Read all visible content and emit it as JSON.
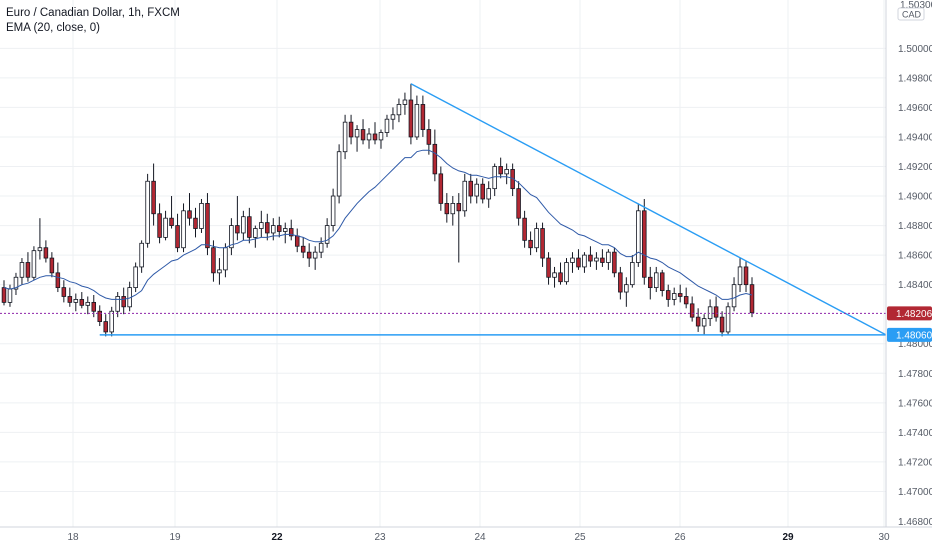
{
  "legend": {
    "title": "Euro / Canadian Dollar, 1h, FXCM",
    "indicator": "EMA (20, close, 0)"
  },
  "currency_badge": "CAD",
  "colors": {
    "up": "#ffffff",
    "down": "#b22833",
    "wick": "#131722",
    "ema": "#2f5aa8",
    "trendline": "#2a9df4",
    "price_line": "#8e24aa",
    "grid": "#eef0f3"
  },
  "chart_data": {
    "type": "candlestick",
    "symbol": "EURCAD",
    "ylim": [
      1.468,
      1.503
    ],
    "y_ticks": [
      "1.50000",
      "1.49800",
      "1.49600",
      "1.49400",
      "1.49200",
      "1.49000",
      "1.48800",
      "1.48600",
      "1.48400",
      "1.48000",
      "1.47800",
      "1.47600",
      "1.47400",
      "1.47200",
      "1.47000"
    ],
    "y_top_label": "1.50300",
    "y_bottom_label": "1.46800",
    "x_ticks": [
      {
        "label": "18",
        "bold": false
      },
      {
        "label": "19",
        "bold": false
      },
      {
        "label": "22",
        "bold": true
      },
      {
        "label": "23",
        "bold": false
      },
      {
        "label": "24",
        "bold": false
      },
      {
        "label": "25",
        "bold": false
      },
      {
        "label": "26",
        "bold": false
      },
      {
        "label": "29",
        "bold": true
      },
      {
        "label": "30",
        "bold": false
      }
    ],
    "current_price": "1.48206",
    "current_price_value": 1.48206,
    "support_label": "1.48060",
    "support_value": 1.4806,
    "trendline": {
      "from_value": 1.4976,
      "to_value": 1.4806
    },
    "candles": [
      [
        1.4838,
        1.4843,
        1.4826,
        1.4828
      ],
      [
        1.4828,
        1.484,
        1.4825,
        1.4837
      ],
      [
        1.4837,
        1.4848,
        1.4833,
        1.4845
      ],
      [
        1.4845,
        1.4858,
        1.484,
        1.4855
      ],
      [
        1.4855,
        1.4862,
        1.4842,
        1.4845
      ],
      [
        1.4845,
        1.4866,
        1.4843,
        1.4863
      ],
      [
        1.4863,
        1.4885,
        1.4857,
        1.4865
      ],
      [
        1.4865,
        1.487,
        1.4855,
        1.4858
      ],
      [
        1.4858,
        1.4862,
        1.4845,
        1.4848
      ],
      [
        1.4848,
        1.4855,
        1.4835,
        1.4838
      ],
      [
        1.4838,
        1.4843,
        1.4828,
        1.4832
      ],
      [
        1.4832,
        1.4838,
        1.4825,
        1.4828
      ],
      [
        1.4828,
        1.4834,
        1.4822,
        1.483
      ],
      [
        1.483,
        1.4835,
        1.4824,
        1.4826
      ],
      [
        1.4826,
        1.4832,
        1.482,
        1.4828
      ],
      [
        1.4828,
        1.4833,
        1.4818,
        1.4822
      ],
      [
        1.4822,
        1.4826,
        1.4812,
        1.4815
      ],
      [
        1.4815,
        1.482,
        1.4805,
        1.4808
      ],
      [
        1.4808,
        1.4825,
        1.4805,
        1.4822
      ],
      [
        1.4822,
        1.4835,
        1.4818,
        1.4832
      ],
      [
        1.4832,
        1.4838,
        1.482,
        1.4825
      ],
      [
        1.4825,
        1.4842,
        1.4822,
        1.4838
      ],
      [
        1.4838,
        1.4855,
        1.4835,
        1.4852
      ],
      [
        1.4852,
        1.487,
        1.4848,
        1.4868
      ],
      [
        1.4868,
        1.4915,
        1.4865,
        1.491
      ],
      [
        1.491,
        1.4922,
        1.488,
        1.4888
      ],
      [
        1.4888,
        1.4895,
        1.4868,
        1.4872
      ],
      [
        1.4872,
        1.489,
        1.487,
        1.4885
      ],
      [
        1.4885,
        1.49,
        1.4878,
        1.488
      ],
      [
        1.488,
        1.4888,
        1.4862,
        1.4865
      ],
      [
        1.4865,
        1.4895,
        1.4862,
        1.489
      ],
      [
        1.489,
        1.4902,
        1.488,
        1.4885
      ],
      [
        1.4885,
        1.4892,
        1.4872,
        1.4878
      ],
      [
        1.4878,
        1.4898,
        1.4875,
        1.4895
      ],
      [
        1.4895,
        1.4902,
        1.486,
        1.4865
      ],
      [
        1.4865,
        1.487,
        1.4842,
        1.4848
      ],
      [
        1.4848,
        1.4858,
        1.484,
        1.485
      ],
      [
        1.485,
        1.4868,
        1.4845,
        1.4865
      ],
      [
        1.4865,
        1.4885,
        1.486,
        1.488
      ],
      [
        1.488,
        1.49,
        1.487,
        1.4875
      ],
      [
        1.4875,
        1.489,
        1.487,
        1.4886
      ],
      [
        1.4886,
        1.4892,
        1.4868,
        1.4872
      ],
      [
        1.4872,
        1.488,
        1.4865,
        1.4878
      ],
      [
        1.4878,
        1.489,
        1.4872,
        1.4882
      ],
      [
        1.4882,
        1.4888,
        1.487,
        1.4875
      ],
      [
        1.4875,
        1.4885,
        1.487,
        1.488
      ],
      [
        1.488,
        1.4886,
        1.4872,
        1.4876
      ],
      [
        1.4876,
        1.4882,
        1.4868,
        1.4878
      ],
      [
        1.4878,
        1.4884,
        1.487,
        1.4873
      ],
      [
        1.4873,
        1.4878,
        1.4862,
        1.4866
      ],
      [
        1.4866,
        1.4872,
        1.4858,
        1.4862
      ],
      [
        1.4862,
        1.4868,
        1.4852,
        1.4858
      ],
      [
        1.4858,
        1.4866,
        1.485,
        1.4862
      ],
      [
        1.4862,
        1.4872,
        1.4858,
        1.4868
      ],
      [
        1.4868,
        1.4885,
        1.4865,
        1.488
      ],
      [
        1.488,
        1.4905,
        1.4876,
        1.49
      ],
      [
        1.49,
        1.4935,
        1.4895,
        1.493
      ],
      [
        1.493,
        1.4955,
        1.4925,
        1.495
      ],
      [
        1.495,
        1.4955,
        1.4935,
        1.494
      ],
      [
        1.494,
        1.4948,
        1.493,
        1.4945
      ],
      [
        1.4945,
        1.4952,
        1.4935,
        1.4938
      ],
      [
        1.4938,
        1.4946,
        1.4932,
        1.4942
      ],
      [
        1.4942,
        1.495,
        1.4935,
        1.4938
      ],
      [
        1.4938,
        1.4945,
        1.4932,
        1.4943
      ],
      [
        1.4943,
        1.4955,
        1.494,
        1.4952
      ],
      [
        1.4952,
        1.496,
        1.4945,
        1.4955
      ],
      [
        1.4955,
        1.4966,
        1.495,
        1.4962
      ],
      [
        1.4962,
        1.497,
        1.4955,
        1.4965
      ],
      [
        1.4965,
        1.4976,
        1.4935,
        1.494
      ],
      [
        1.494,
        1.4968,
        1.4938,
        1.4962
      ],
      [
        1.4962,
        1.4968,
        1.494,
        1.4945
      ],
      [
        1.4945,
        1.4952,
        1.4928,
        1.4935
      ],
      [
        1.4935,
        1.4945,
        1.491,
        1.4915
      ],
      [
        1.4915,
        1.492,
        1.489,
        1.4895
      ],
      [
        1.4895,
        1.4902,
        1.4882,
        1.4888
      ],
      [
        1.4888,
        1.49,
        1.488,
        1.4895
      ],
      [
        1.4895,
        1.4902,
        1.4855,
        1.489
      ],
      [
        1.489,
        1.4915,
        1.4886,
        1.491
      ],
      [
        1.491,
        1.4915,
        1.4895,
        1.49
      ],
      [
        1.49,
        1.4912,
        1.4895,
        1.4908
      ],
      [
        1.4908,
        1.4912,
        1.4895,
        1.4898
      ],
      [
        1.4898,
        1.491,
        1.4892,
        1.4905
      ],
      [
        1.4905,
        1.4922,
        1.49,
        1.492
      ],
      [
        1.492,
        1.4926,
        1.4912,
        1.4915
      ],
      [
        1.4915,
        1.4922,
        1.4908,
        1.4918
      ],
      [
        1.4918,
        1.4922,
        1.49,
        1.4905
      ],
      [
        1.4905,
        1.491,
        1.488,
        1.4885
      ],
      [
        1.4885,
        1.489,
        1.4865,
        1.487
      ],
      [
        1.487,
        1.4876,
        1.486,
        1.4865
      ],
      [
        1.4865,
        1.4882,
        1.4862,
        1.4878
      ],
      [
        1.4878,
        1.4882,
        1.4852,
        1.4858
      ],
      [
        1.4858,
        1.4862,
        1.484,
        1.4845
      ],
      [
        1.4845,
        1.4852,
        1.4838,
        1.4848
      ],
      [
        1.4848,
        1.4855,
        1.484,
        1.4842
      ],
      [
        1.4842,
        1.4858,
        1.484,
        1.4855
      ],
      [
        1.4855,
        1.4862,
        1.4848,
        1.4858
      ],
      [
        1.4858,
        1.4864,
        1.485,
        1.4852
      ],
      [
        1.4852,
        1.4862,
        1.4848,
        1.486
      ],
      [
        1.486,
        1.4866,
        1.4852,
        1.4856
      ],
      [
        1.4856,
        1.4862,
        1.485,
        1.4858
      ],
      [
        1.4858,
        1.4864,
        1.4852,
        1.4855
      ],
      [
        1.4855,
        1.4864,
        1.485,
        1.4862
      ],
      [
        1.4862,
        1.4865,
        1.4845,
        1.4848
      ],
      [
        1.4848,
        1.4852,
        1.483,
        1.4835
      ],
      [
        1.4835,
        1.4845,
        1.4825,
        1.484
      ],
      [
        1.484,
        1.486,
        1.4838,
        1.4855
      ],
      [
        1.4855,
        1.4895,
        1.4852,
        1.489
      ],
      [
        1.489,
        1.4898,
        1.484,
        1.4845
      ],
      [
        1.4845,
        1.4852,
        1.483,
        1.4838
      ],
      [
        1.4838,
        1.4852,
        1.4835,
        1.4848
      ],
      [
        1.4848,
        1.485,
        1.4832,
        1.4836
      ],
      [
        1.4836,
        1.484,
        1.4825,
        1.483
      ],
      [
        1.483,
        1.4838,
        1.4826,
        1.4834
      ],
      [
        1.4834,
        1.484,
        1.4828,
        1.4832
      ],
      [
        1.4832,
        1.4838,
        1.4824,
        1.4827
      ],
      [
        1.4827,
        1.4832,
        1.4815,
        1.4818
      ],
      [
        1.4818,
        1.4824,
        1.4808,
        1.4812
      ],
      [
        1.4812,
        1.482,
        1.4806,
        1.4817
      ],
      [
        1.4817,
        1.483,
        1.4812,
        1.4825
      ],
      [
        1.4825,
        1.4832,
        1.4815,
        1.4818
      ],
      [
        1.4818,
        1.4822,
        1.4805,
        1.4808
      ],
      [
        1.4808,
        1.4828,
        1.4806,
        1.4825
      ],
      [
        1.4825,
        1.4845,
        1.4822,
        1.484
      ],
      [
        1.484,
        1.4858,
        1.4835,
        1.4852
      ],
      [
        1.4852,
        1.4856,
        1.4835,
        1.484
      ],
      [
        1.484,
        1.4845,
        1.4818,
        1.4821
      ]
    ],
    "ema_values": [
      1.4838,
      1.4837,
      1.4838,
      1.484,
      1.4841,
      1.4843,
      1.4845,
      1.4846,
      1.4846,
      1.4845,
      1.4844,
      1.4842,
      1.4841,
      1.4839,
      1.4838,
      1.4836,
      1.4833,
      1.4831,
      1.483,
      1.483,
      1.483,
      1.4831,
      1.4833,
      1.4836,
      1.4843,
      1.4847,
      1.485,
      1.4853,
      1.4856,
      1.4857,
      1.486,
      1.4862,
      1.4864,
      1.4867,
      1.4867,
      1.4866,
      1.4865,
      1.4865,
      1.4867,
      1.4868,
      1.487,
      1.487,
      1.4871,
      1.4872,
      1.4872,
      1.4873,
      1.4873,
      1.4874,
      1.4874,
      1.4873,
      1.4872,
      1.487,
      1.4869,
      1.4869,
      1.487,
      1.4873,
      1.4878,
      1.4885,
      1.489,
      1.4895,
      1.4899,
      1.4903,
      1.4906,
      1.491,
      1.4914,
      1.4918,
      1.4922,
      1.4926,
      1.4926,
      1.493,
      1.4931,
      1.4931,
      1.4929,
      1.4926,
      1.4922,
      1.4919,
      1.4917,
      1.4916,
      1.4914,
      1.4914,
      1.4913,
      1.4912,
      1.4913,
      1.4913,
      1.4913,
      1.4912,
      1.4909,
      1.4905,
      1.4901,
      1.4899,
      1.4894,
      1.4889,
      1.4885,
      1.4881,
      1.4879,
      1.4877,
      1.4874,
      1.4873,
      1.4871,
      1.4869,
      1.4867,
      1.4867,
      1.4865,
      1.4861,
      1.4859,
      1.4859,
      1.4862,
      1.486,
      1.4858,
      1.4857,
      1.4855,
      1.4852,
      1.485,
      1.4848,
      1.4845,
      1.4842,
      1.4839,
      1.4837,
      1.4835,
      1.4833,
      1.483,
      1.483,
      1.4831,
      1.4833,
      1.4834,
      1.4833
    ]
  }
}
